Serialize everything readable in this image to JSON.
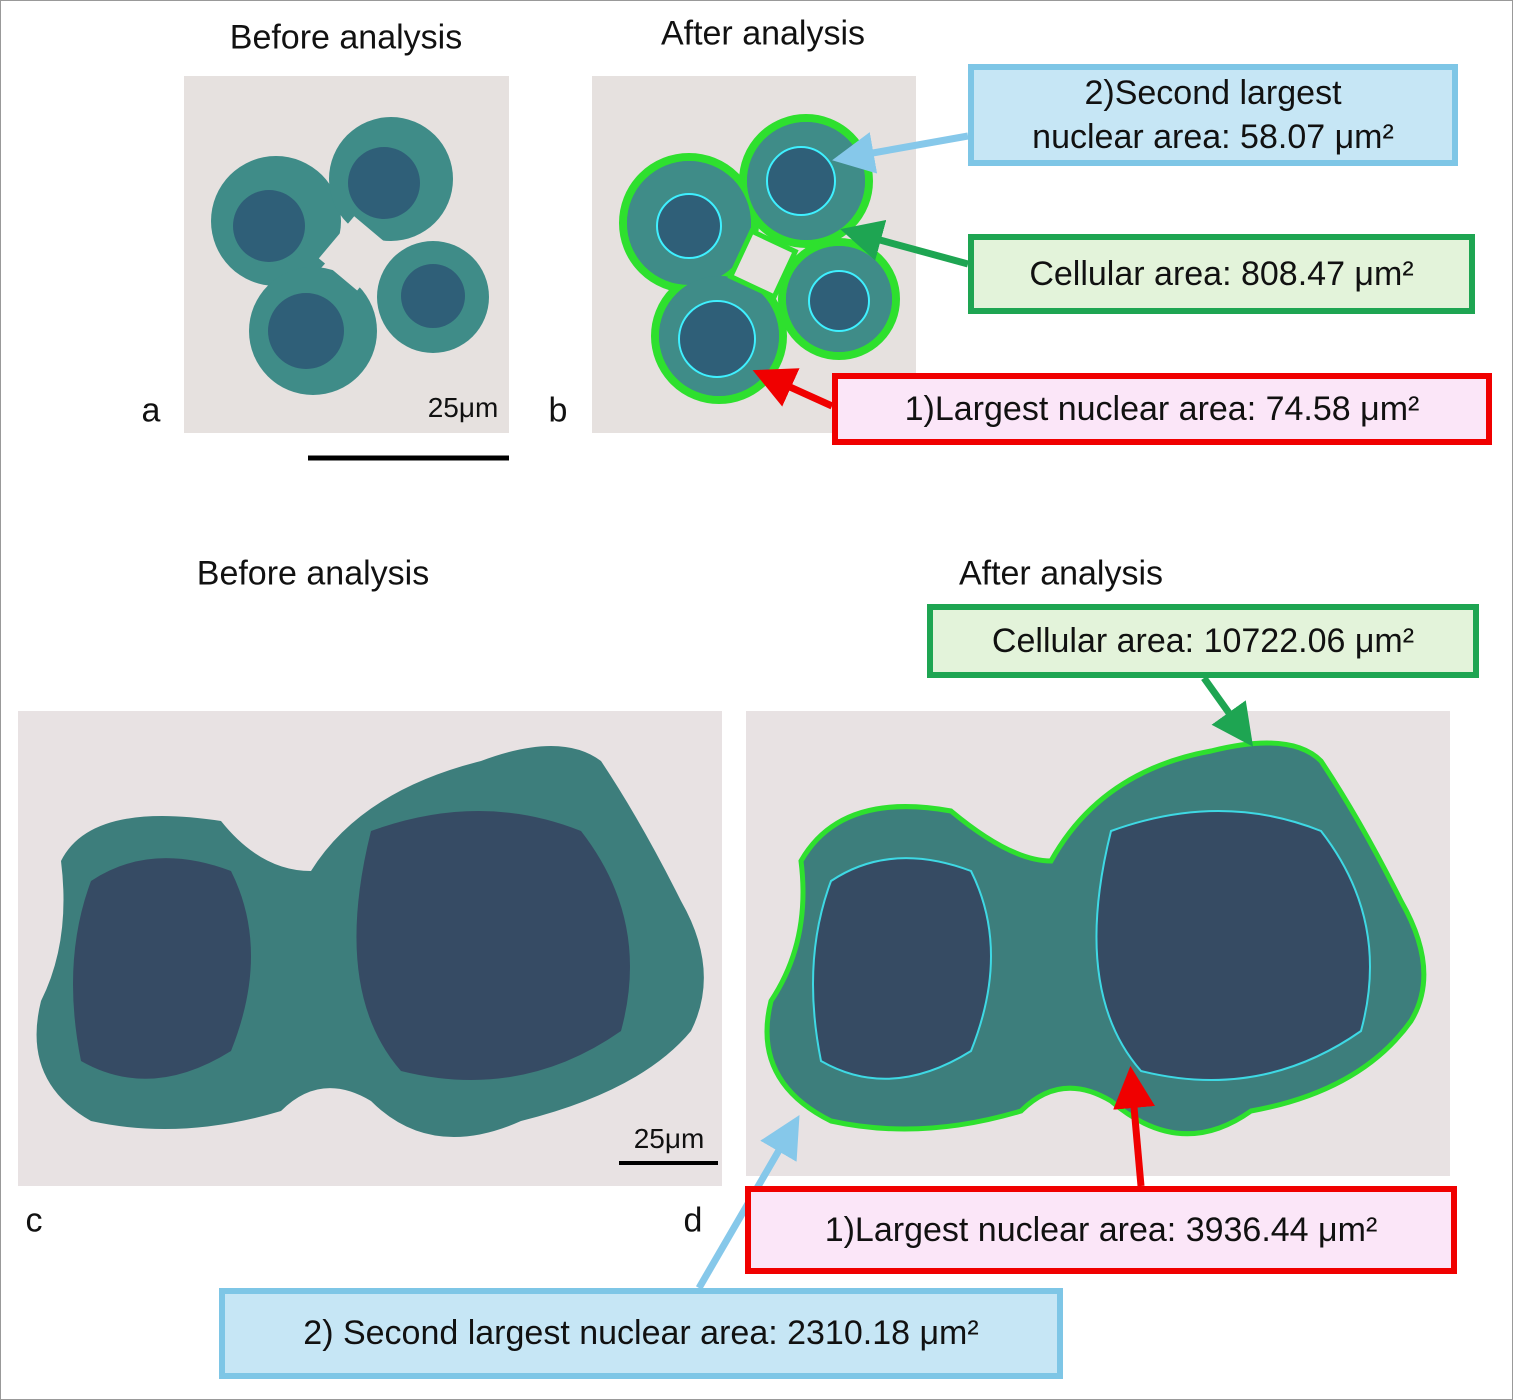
{
  "panels": [
    {
      "letter": "a",
      "title": "Before analysis",
      "scale": "25μm"
    },
    {
      "letter": "b",
      "title": "After analysis",
      "callouts": [
        {
          "lines": [
            "2)Second largest",
            "nuclear area: 58.07 μm²"
          ]
        },
        {
          "lines": [
            "Cellular area: 808.47 μm²"
          ]
        },
        {
          "lines": [
            "1)Largest nuclear area: 74.58 μm²"
          ]
        }
      ]
    },
    {
      "letter": "c",
      "title": "Before analysis",
      "scale": "25μm"
    },
    {
      "letter": "d",
      "title": "After analysis",
      "callouts": [
        {
          "lines": [
            "Cellular area: 10722.06 μm²"
          ]
        },
        {
          "lines": [
            "1)Largest nuclear area: 3936.44 μm²"
          ]
        },
        {
          "lines": [
            "2) Second largest nuclear area: 2310.18 μm²"
          ]
        }
      ]
    }
  ]
}
